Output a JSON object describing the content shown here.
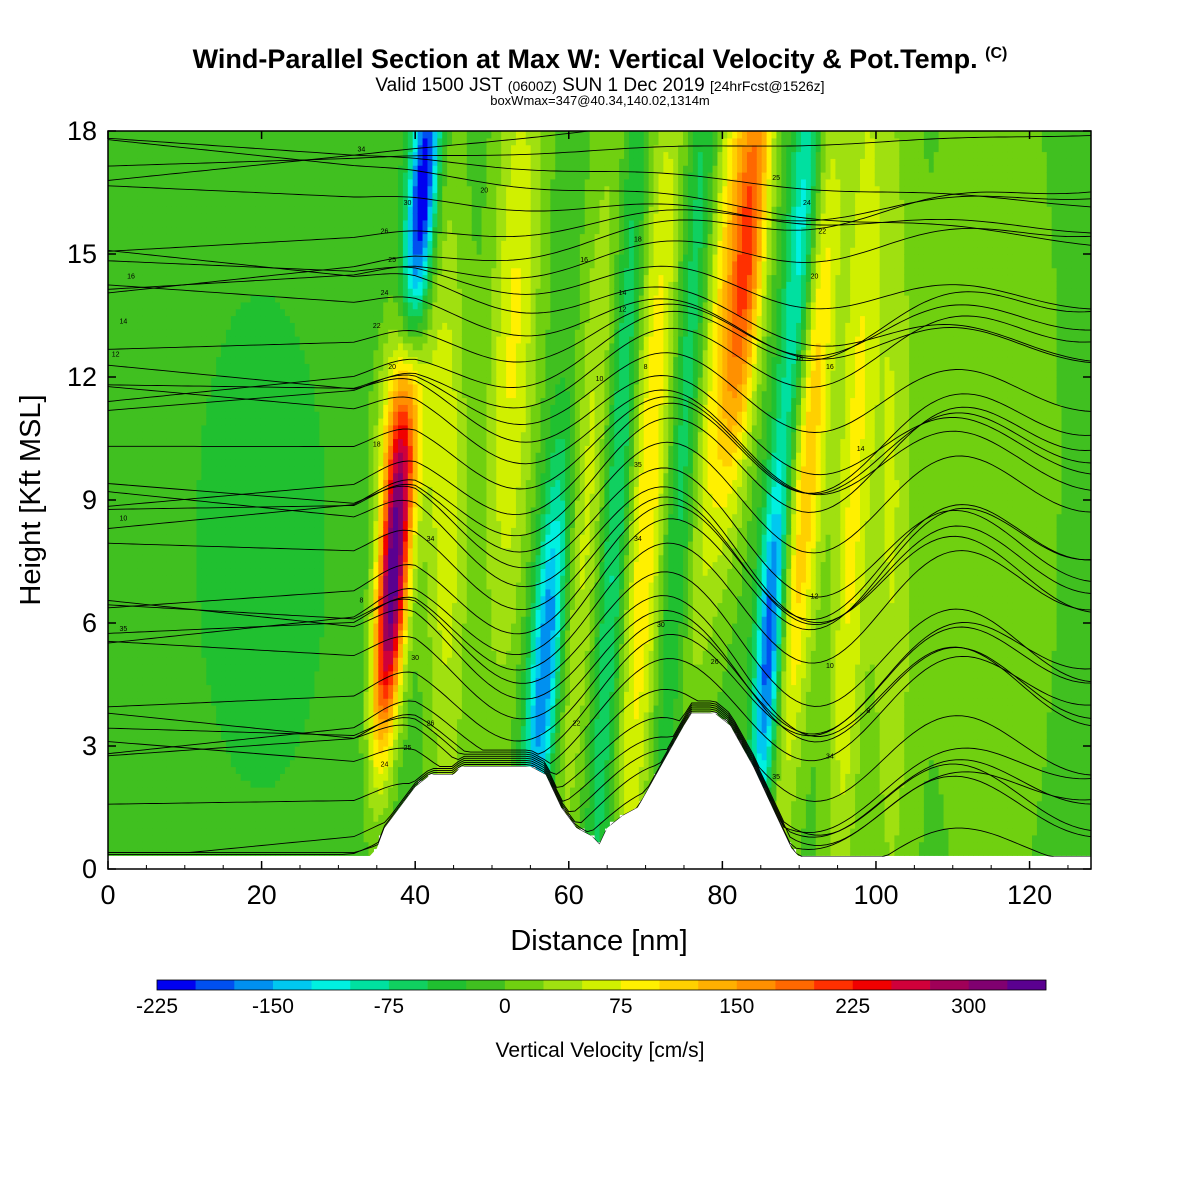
{
  "header": {
    "title": "Wind-Parallel Section at Max W: Vertical Velocity & Pot.Temp.",
    "title_mark": "(C)",
    "valid_main": "Valid 1500 JST",
    "valid_utc": "(0600Z)",
    "valid_date": "SUN 1 Dec 2019",
    "forecast": "[24hrFcst@1526z]",
    "boxinfo": "boxWmax=347@40.34,140.02,1314m"
  },
  "chart_data": {
    "type": "heatmap",
    "xlabel": "Distance [nm]",
    "ylabel": "Height [Kft MSL]",
    "xlim": [
      0,
      128
    ],
    "ylim": [
      0,
      18
    ],
    "xticks": [
      0,
      20,
      40,
      60,
      80,
      100,
      120
    ],
    "yticks": [
      0,
      3,
      6,
      9,
      12,
      15,
      18
    ],
    "colorbar": {
      "label": "Vertical Velocity [cm/s]",
      "ticks": [
        "-225",
        "-150",
        "-75",
        "0",
        "75",
        "150",
        "225",
        "300"
      ],
      "colors": [
        "#0000f0",
        "#0050f0",
        "#0090f0",
        "#00c8f0",
        "#00f0e0",
        "#00e0a0",
        "#10d060",
        "#20c030",
        "#40c020",
        "#70d010",
        "#a0e010",
        "#d0f000",
        "#fff000",
        "#ffd000",
        "#ffb000",
        "#ff9000",
        "#ff6800",
        "#ff3000",
        "#f00000",
        "#d0003a",
        "#a00058",
        "#800070",
        "#5a0090"
      ]
    },
    "terrain_profile": [
      [
        0,
        0.3
      ],
      [
        34,
        0.3
      ],
      [
        35,
        0.5
      ],
      [
        36,
        1
      ],
      [
        38,
        1.5
      ],
      [
        40,
        2
      ],
      [
        42,
        2.3
      ],
      [
        45,
        2.3
      ],
      [
        46,
        2.5
      ],
      [
        48,
        2.5
      ],
      [
        55,
        2.5
      ],
      [
        57,
        2.3
      ],
      [
        59,
        1.5
      ],
      [
        61,
        1
      ],
      [
        63,
        0.8
      ],
      [
        64,
        0.6
      ],
      [
        65,
        1
      ],
      [
        67,
        1.3
      ],
      [
        69,
        1.5
      ],
      [
        72,
        2.5
      ],
      [
        75,
        3.5
      ],
      [
        76,
        3.8
      ],
      [
        79,
        3.8
      ],
      [
        81,
        3.5
      ],
      [
        84,
        2.5
      ],
      [
        87,
        1.3
      ],
      [
        89,
        0.5
      ],
      [
        90,
        0.3
      ],
      [
        128,
        0.3
      ]
    ],
    "velocity_features": [
      {
        "center_x": 36.5,
        "center_y": 6.5,
        "value": 347
      },
      {
        "center_x": 39.5,
        "center_y": 16.5,
        "value": -220
      },
      {
        "center_x": 60,
        "center_y": 4,
        "value": -180
      },
      {
        "center_x": 83,
        "center_y": 15.5,
        "value": 230
      },
      {
        "center_x": 87,
        "center_y": 5,
        "value": -190
      },
      {
        "center_x": 91,
        "center_y": 7,
        "value": 160
      }
    ],
    "contour_labels": [
      "34",
      "30",
      "26",
      "25",
      "24",
      "22",
      "20",
      "18",
      "16",
      "14",
      "12",
      "10",
      "8",
      "35"
    ]
  }
}
